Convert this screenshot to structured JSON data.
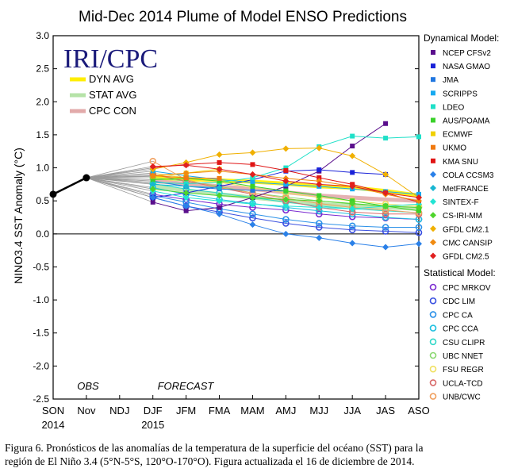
{
  "chart_data": {
    "type": "line",
    "title": "Mid-Dec 2014 Plume of Model ENSO Predictions",
    "ylabel": "NINO3.4 SST Anomaly (°C)",
    "xlabel": "",
    "categories": [
      "SON",
      "Nov",
      "NDJ",
      "DJF",
      "JFM",
      "FMA",
      "MAM",
      "AMJ",
      "MJJ",
      "JJA",
      "JAS",
      "ASO"
    ],
    "year_labels": [
      {
        "at": "SON",
        "text": "2014"
      },
      {
        "at": "DJF",
        "text": "2015"
      }
    ],
    "ylim": [
      -2.5,
      3.0
    ],
    "yticks": [
      "3.0",
      "2.5",
      "2.0",
      "1.5",
      "1.0",
      "0.5",
      "0.0",
      "-0.5",
      "-1.0",
      "-1.5",
      "-2.0",
      "-2.5"
    ],
    "grid": false,
    "annotations": {
      "obs": "OBS",
      "forecast": "FORECAST",
      "logo": "IRI/CPC"
    },
    "observed": {
      "x": [
        "SON",
        "Nov"
      ],
      "values": [
        0.6,
        0.85
      ],
      "color": "#000000"
    },
    "averages": [
      {
        "name": "DYN AVG",
        "color": "#ffee00",
        "values": [
          null,
          0.85,
          null,
          0.85,
          0.83,
          0.81,
          0.79,
          0.76,
          0.72,
          0.7,
          0.65,
          0.58
        ]
      },
      {
        "name": "STAT AVG",
        "color": "#b6e3a8",
        "values": [
          null,
          0.85,
          null,
          0.72,
          0.66,
          0.6,
          0.55,
          0.5,
          0.45,
          0.42,
          0.4,
          0.38
        ]
      },
      {
        "name": "CPC CON",
        "color": "#e2aaaa",
        "values": [
          null,
          0.85,
          null,
          0.8,
          0.76,
          0.72,
          0.68,
          0.63,
          0.58,
          0.55,
          0.52,
          0.5
        ]
      }
    ],
    "legend": {
      "dynamical_title": "Dynamical Model:",
      "statistical_title": "Statistical Model:",
      "placement": "right"
    },
    "dynamical_series": [
      {
        "name": "NCEP CFSv2",
        "color": "#5a0f8c",
        "marker": "square",
        "values": [
          null,
          0.85,
          null,
          0.48,
          0.35,
          0.4,
          0.55,
          0.72,
          0.95,
          1.33,
          1.67,
          null
        ]
      },
      {
        "name": "NASA GMAO",
        "color": "#1a22d8",
        "marker": "square",
        "values": [
          null,
          0.85,
          null,
          0.55,
          0.62,
          0.72,
          0.82,
          0.95,
          0.97,
          0.93,
          0.9,
          null
        ]
      },
      {
        "name": "JMA",
        "color": "#2077e0",
        "marker": "square",
        "values": [
          null,
          0.85,
          null,
          0.8,
          0.72,
          0.68,
          0.66,
          0.65,
          null,
          null,
          null,
          null
        ]
      },
      {
        "name": "SCRIPPS",
        "color": "#17a9f0",
        "marker": "square",
        "values": [
          null,
          0.85,
          null,
          0.95,
          0.88,
          0.82,
          0.78,
          0.75,
          0.72,
          0.68,
          0.64,
          0.6
        ]
      },
      {
        "name": "LDEO",
        "color": "#1fe0c8",
        "marker": "square",
        "values": [
          null,
          0.85,
          null,
          0.78,
          0.76,
          0.78,
          0.85,
          1.0,
          1.32,
          1.48,
          1.45,
          1.47
        ]
      },
      {
        "name": "AUS/POAMA",
        "color": "#3ad12a",
        "marker": "square",
        "values": [
          null,
          0.85,
          null,
          0.82,
          0.84,
          0.8,
          0.72,
          0.65,
          0.58,
          0.5,
          0.42,
          0.35
        ]
      },
      {
        "name": "ECMWF",
        "color": "#f0d000",
        "marker": "square",
        "values": [
          null,
          0.85,
          null,
          0.87,
          0.92,
          0.98,
          null,
          null,
          null,
          null,
          null,
          null
        ]
      },
      {
        "name": "UKMO",
        "color": "#f07a10",
        "marker": "square",
        "values": [
          null,
          0.85,
          null,
          0.88,
          0.85,
          0.84,
          null,
          null,
          null,
          null,
          null,
          null
        ]
      },
      {
        "name": "KMA SNU",
        "color": "#e01515",
        "marker": "square",
        "values": [
          null,
          0.85,
          null,
          1.0,
          1.05,
          1.08,
          1.05,
          0.96,
          0.85,
          0.75,
          0.62,
          0.48
        ]
      },
      {
        "name": "COLA CCSM3",
        "color": "#2a80e8",
        "marker": "diamond",
        "values": [
          null,
          0.85,
          null,
          0.55,
          0.42,
          0.3,
          0.14,
          0.0,
          -0.06,
          -0.14,
          -0.2,
          -0.15
        ]
      },
      {
        "name": "MetFRANCE",
        "color": "#18b6d2",
        "marker": "diamond",
        "values": [
          null,
          0.85,
          null,
          0.75,
          0.72,
          0.7,
          null,
          null,
          null,
          null,
          null,
          null
        ]
      },
      {
        "name": "SINTEX-F",
        "color": "#22e4d4",
        "marker": "diamond",
        "values": [
          null,
          0.85,
          null,
          0.65,
          0.55,
          0.5,
          0.45,
          0.42,
          0.4,
          0.38,
          0.42,
          0.45
        ]
      },
      {
        "name": "CS-IRI-MM",
        "color": "#4ed42c",
        "marker": "diamond",
        "values": [
          null,
          0.85,
          null,
          0.68,
          0.62,
          0.58,
          0.55,
          0.52,
          0.5,
          0.46,
          0.42,
          0.4
        ]
      },
      {
        "name": "GFDL CM2.1",
        "color": "#f0b000",
        "marker": "diamond",
        "values": [
          null,
          0.85,
          null,
          0.98,
          1.08,
          1.2,
          1.23,
          1.29,
          1.3,
          1.18,
          0.9,
          0.55
        ]
      },
      {
        "name": "CMC CANSIP",
        "color": "#f08a10",
        "marker": "diamond",
        "values": [
          null,
          0.85,
          null,
          0.88,
          0.92,
          0.95,
          0.9,
          0.84,
          0.8,
          0.72,
          0.6,
          0.5
        ]
      },
      {
        "name": "GFDL CM2.5",
        "color": "#e02020",
        "marker": "diamond",
        "values": [
          null,
          0.85,
          null,
          1.02,
          1.04,
          0.98,
          0.9,
          0.8,
          0.75,
          0.72,
          0.62,
          0.55
        ]
      }
    ],
    "statistical_series": [
      {
        "name": "CPC MRKOV",
        "color": "#7a2ad0",
        "marker": "circle",
        "values": [
          null,
          0.85,
          null,
          0.6,
          0.52,
          0.45,
          0.4,
          0.36,
          0.3,
          0.26,
          0.24,
          0.22
        ]
      },
      {
        "name": "CDC LIM",
        "color": "#3a50e0",
        "marker": "circle",
        "values": [
          null,
          0.85,
          null,
          0.55,
          0.42,
          0.33,
          0.24,
          0.16,
          0.1,
          0.06,
          0.04,
          0.02
        ]
      },
      {
        "name": "CPC CA",
        "color": "#2a90e8",
        "marker": "circle",
        "values": [
          null,
          0.85,
          null,
          0.58,
          0.48,
          0.38,
          0.3,
          0.22,
          0.16,
          0.12,
          0.1,
          0.1
        ]
      },
      {
        "name": "CPC CCA",
        "color": "#20c0e0",
        "marker": "circle",
        "values": [
          null,
          0.85,
          null,
          0.7,
          0.6,
          0.52,
          0.46,
          0.4,
          0.35,
          0.3,
          0.25,
          0.22
        ]
      },
      {
        "name": "CSU CLIPR",
        "color": "#30d8c8",
        "marker": "circle",
        "values": [
          null,
          0.85,
          null,
          0.76,
          0.68,
          0.62,
          0.55,
          0.48,
          0.42,
          0.38,
          0.35,
          0.32
        ]
      },
      {
        "name": "UBC NNET",
        "color": "#8ad870",
        "marker": "circle",
        "values": [
          null,
          0.85,
          null,
          0.85,
          0.8,
          0.72,
          0.62,
          0.56,
          0.5,
          0.45,
          0.42,
          0.4
        ]
      },
      {
        "name": "FSU REGR",
        "color": "#f0e060",
        "marker": "circle",
        "values": [
          null,
          0.85,
          null,
          0.92,
          0.85,
          0.78,
          0.7,
          0.62,
          0.55,
          0.5,
          0.45,
          0.42
        ]
      },
      {
        "name": "UCLA-TCD",
        "color": "#d86a6a",
        "marker": "circle",
        "values": [
          null,
          0.85,
          null,
          0.9,
          0.8,
          0.7,
          0.6,
          0.5,
          0.4,
          0.33,
          0.3,
          0.3
        ]
      },
      {
        "name": "UNB/CWC",
        "color": "#f0a060",
        "marker": "circle",
        "values": [
          null,
          0.85,
          null,
          1.1,
          0.82,
          0.7,
          0.62,
          0.54,
          0.46,
          0.4,
          0.36,
          0.32
        ]
      }
    ]
  },
  "caption": {
    "line1": "Figura 6. Pronósticos de las anomalías de la temperatura de la superficie del océano (SST) para la",
    "line2": "región de El Niño 3.4 (5°N-5°S, 120°O-170°O). Figura actualizada el 16 de diciembre de 2014."
  }
}
